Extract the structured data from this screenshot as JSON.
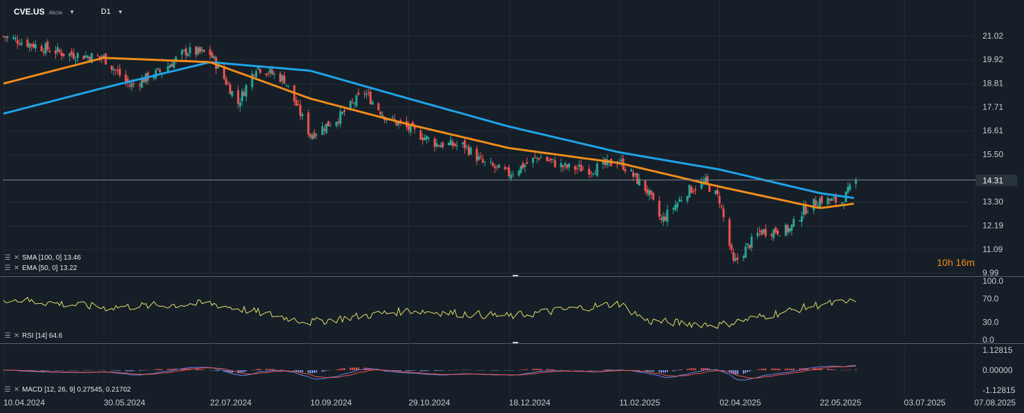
{
  "header": {
    "symbol": "CVE.US",
    "type": "Akcie",
    "timeframe": "D1"
  },
  "colors": {
    "background": "#161f27",
    "grid": "#222c35",
    "up": "#26a69a",
    "down": "#ef5350",
    "sma": "#1ea4e9",
    "ema": "#f28c1b",
    "rsi": "#e4e06a",
    "macd": "#6b82e8",
    "signal": "#ef5350",
    "hist_pos": "#ef5350",
    "hist_neg": "#8c95e8"
  },
  "timer": "10h 16m",
  "indicators": {
    "sma": "SMA [100, 0] 13.46",
    "ema": "EMA [50, 0] 13.22",
    "rsi": "RSI [14] 64.6",
    "macd": "MACD [12, 26, 9] 0.27545, 0.21702"
  },
  "price_axis": [
    "21.02",
    "19.92",
    "18.81",
    "17.71",
    "16.61",
    "15.50",
    "13.30",
    "12.19",
    "11.09",
    "9.99"
  ],
  "rsi_axis": [
    "100.0",
    "70.0",
    "30.0",
    "0.0"
  ],
  "macd_axis": [
    "1.12815",
    "0.00000",
    "-1.12815"
  ],
  "current_price": "14.31",
  "date_axis": [
    "10.04.2024",
    "30.05.2024",
    "22.07.2024",
    "10.09.2024",
    "29.10.2024",
    "18.12.2024",
    "11.02.2025",
    "02.04.2025",
    "22.05.2025",
    "03.07.2025",
    "07.08.2025"
  ],
  "chart_data": {
    "type": "candlestick",
    "symbol": "CVE.US",
    "timeframe": "D1",
    "x_start": "10.04.2024",
    "x_end_data": "09.06.2025",
    "ylim": [
      9.99,
      21.02
    ],
    "close_keypoints": [
      [
        "10.04.2024",
        21.0
      ],
      [
        "25.04.2024",
        20.6
      ],
      [
        "10.05.2024",
        20.2
      ],
      [
        "30.05.2024",
        20.0
      ],
      [
        "12.06.2024",
        18.7
      ],
      [
        "28.06.2024",
        19.4
      ],
      [
        "10.07.2024",
        20.3
      ],
      [
        "22.07.2024",
        20.2
      ],
      [
        "05.08.2024",
        17.9
      ],
      [
        "14.08.2024",
        19.6
      ],
      [
        "28.08.2024",
        19.0
      ],
      [
        "10.09.2024",
        16.4
      ],
      [
        "24.09.2024",
        17.2
      ],
      [
        "07.10.2024",
        18.4
      ],
      [
        "18.10.2024",
        17.2
      ],
      [
        "29.10.2024",
        16.7
      ],
      [
        "12.11.2024",
        16.0
      ],
      [
        "26.11.2024",
        15.9
      ],
      [
        "05.12.2024",
        15.1
      ],
      [
        "18.12.2024",
        14.6
      ],
      [
        "02.01.2025",
        15.4
      ],
      [
        "15.01.2025",
        14.9
      ],
      [
        "28.01.2025",
        14.8
      ],
      [
        "11.02.2025",
        15.2
      ],
      [
        "25.02.2025",
        13.8
      ],
      [
        "04.03.2025",
        12.4
      ],
      [
        "17.03.2025",
        13.8
      ],
      [
        "26.03.2025",
        14.2
      ],
      [
        "02.04.2025",
        13.4
      ],
      [
        "09.04.2025",
        10.4
      ],
      [
        "22.04.2025",
        11.9
      ],
      [
        "07.05.2025",
        12.0
      ],
      [
        "14.05.2025",
        12.9
      ],
      [
        "22.05.2025",
        13.4
      ],
      [
        "02.06.2025",
        13.3
      ],
      [
        "09.06.2025",
        14.31
      ]
    ],
    "sma_100": {
      "name": "SMA [100, 0]",
      "last": 13.46,
      "keypoints": [
        [
          "10.04.2024",
          17.4
        ],
        [
          "30.05.2024",
          18.6
        ],
        [
          "22.07.2024",
          19.8
        ],
        [
          "10.09.2024",
          19.4
        ],
        [
          "29.10.2024",
          18.1
        ],
        [
          "18.12.2024",
          16.8
        ],
        [
          "11.02.2025",
          15.6
        ],
        [
          "02.04.2025",
          14.8
        ],
        [
          "22.05.2025",
          13.7
        ],
        [
          "09.06.2025",
          13.46
        ]
      ]
    },
    "ema_50": {
      "name": "EMA [50, 0]",
      "last": 13.22,
      "keypoints": [
        [
          "10.04.2024",
          18.8
        ],
        [
          "30.05.2024",
          20.0
        ],
        [
          "22.07.2024",
          19.8
        ],
        [
          "10.09.2024",
          18.1
        ],
        [
          "29.10.2024",
          16.9
        ],
        [
          "18.12.2024",
          15.8
        ],
        [
          "11.02.2025",
          15.1
        ],
        [
          "02.04.2025",
          14.0
        ],
        [
          "22.05.2025",
          13.0
        ],
        [
          "09.06.2025",
          13.22
        ]
      ]
    },
    "rsi": {
      "name": "RSI [14]",
      "last": 64.6,
      "ylim": [
        0,
        100
      ],
      "keypoints": [
        [
          "10.04.2024",
          70
        ],
        [
          "30.05.2024",
          55
        ],
        [
          "22.07.2024",
          62
        ],
        [
          "10.09.2024",
          30
        ],
        [
          "29.10.2024",
          50
        ],
        [
          "18.12.2024",
          40
        ],
        [
          "11.02.2025",
          62
        ],
        [
          "25.02.2025",
          32
        ],
        [
          "02.04.2025",
          25
        ],
        [
          "22.05.2025",
          60
        ],
        [
          "09.06.2025",
          64.6
        ]
      ]
    },
    "macd": {
      "name": "MACD [12, 26, 9]",
      "macd_last": 0.27545,
      "signal_last": 0.21702,
      "ylim": [
        -1.12815,
        1.12815
      ]
    }
  }
}
